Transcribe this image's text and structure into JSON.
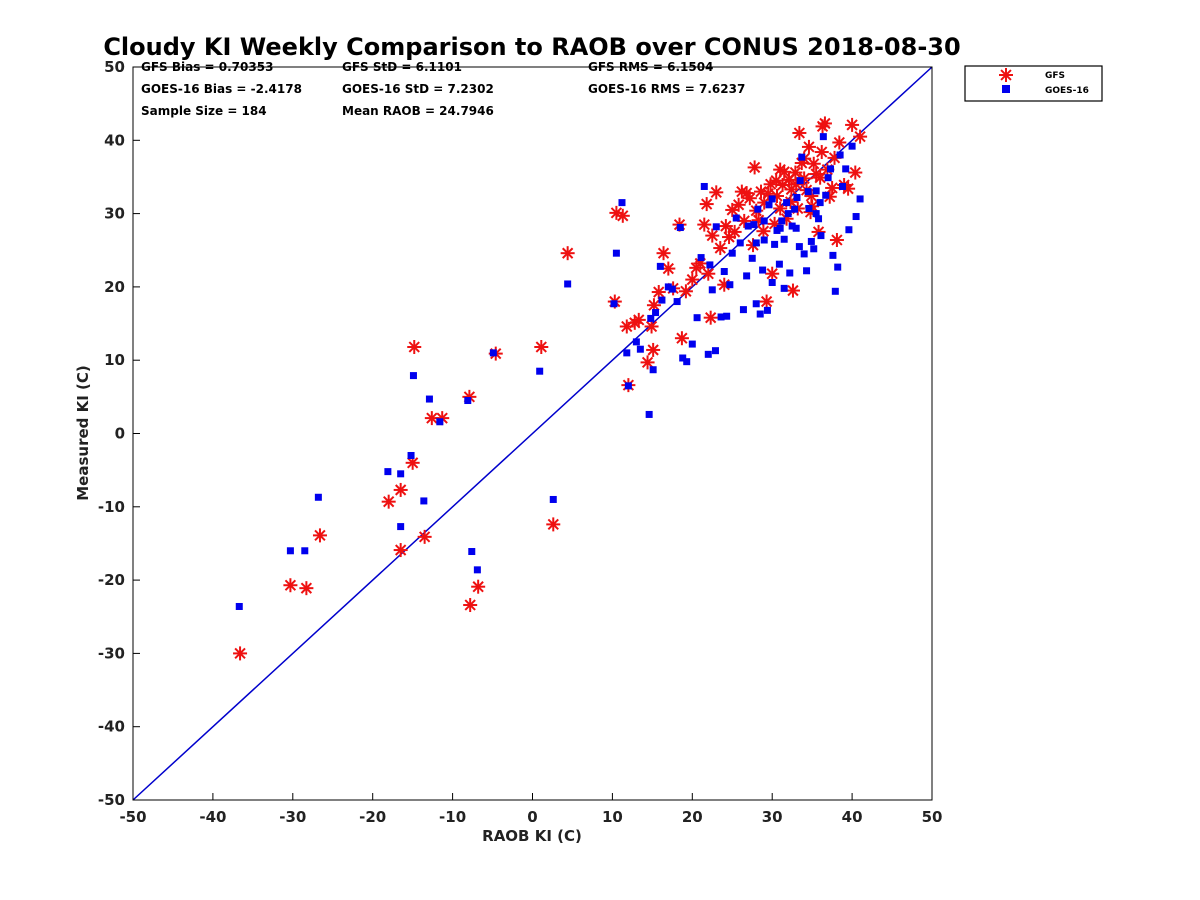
{
  "chart_data": {
    "type": "scatter",
    "title": "Cloudy KI Weekly Comparison to RAOB over CONUS 2018-08-30",
    "xlabel": "RAOB KI (C)",
    "ylabel": "Measured KI (C)",
    "xlim": [
      -50,
      50
    ],
    "ylim": [
      -50,
      50
    ],
    "xticks": [
      "-50",
      "-40",
      "-30",
      "-20",
      "-10",
      "0",
      "10",
      "20",
      "30",
      "40",
      "50"
    ],
    "yticks": [
      "50",
      "40",
      "30",
      "20",
      "10",
      "0",
      "-10",
      "-20",
      "-30",
      "-40",
      "-50"
    ],
    "grid": false,
    "legend_position": "top-right",
    "reference_line": {
      "from": [
        -50,
        -50
      ],
      "to": [
        50,
        50
      ],
      "color": "#0000cc"
    },
    "stats": [
      "GFS Bias = 0.70353",
      "GFS StD = 6.1101",
      "GFS RMS = 6.1504",
      "GOES-16 Bias = -2.4178",
      "GOES-16 StD = 7.2302",
      "GOES-16 RMS = 7.6237",
      "Sample Size = 184",
      "Mean RAOB = 24.7946"
    ],
    "series": [
      {
        "name": "GFS",
        "marker": "asterisk",
        "color": "#ee1111",
        "points": [
          [
            -36.6,
            -30
          ],
          [
            -30.3,
            -20.7
          ],
          [
            -28.3,
            -21.1
          ],
          [
            -26.6,
            -13.9
          ],
          [
            -18,
            -9.3
          ],
          [
            -16.5,
            -7.7
          ],
          [
            -16.5,
            -15.9
          ],
          [
            -15,
            -4
          ],
          [
            -14.8,
            11.8
          ],
          [
            -13.5,
            -14.1
          ],
          [
            -12.6,
            2.1
          ],
          [
            -11.3,
            2.1
          ],
          [
            -7.9,
            5
          ],
          [
            -7.8,
            -23.4
          ],
          [
            -6.8,
            -20.9
          ],
          [
            -4.6,
            10.9
          ],
          [
            1.1,
            11.8
          ],
          [
            2.6,
            -12.4
          ],
          [
            4.4,
            24.6
          ],
          [
            10.3,
            18
          ],
          [
            10.5,
            30.1
          ],
          [
            11.3,
            29.7
          ],
          [
            11.8,
            14.6
          ],
          [
            12,
            6.6
          ],
          [
            12.8,
            15.1
          ],
          [
            13.3,
            15.5
          ],
          [
            14.4,
            9.7
          ],
          [
            14.9,
            14.6
          ],
          [
            15.1,
            11.4
          ],
          [
            15.2,
            17.5
          ],
          [
            15.8,
            19.3
          ],
          [
            16.4,
            24.6
          ],
          [
            17,
            22.5
          ],
          [
            17.6,
            19.8
          ],
          [
            18.4,
            28.5
          ],
          [
            18.7,
            13
          ],
          [
            19.2,
            19.4
          ],
          [
            20,
            21
          ],
          [
            20.5,
            22.6
          ],
          [
            21,
            23.2
          ],
          [
            21.5,
            28.5
          ],
          [
            21.8,
            31.3
          ],
          [
            22,
            21.8
          ],
          [
            22.3,
            15.8
          ],
          [
            22.5,
            27
          ],
          [
            23,
            32.9
          ],
          [
            23.5,
            25.3
          ],
          [
            24,
            20.3
          ],
          [
            24.2,
            28.3
          ],
          [
            24.6,
            26.8
          ],
          [
            25,
            30.5
          ],
          [
            25.3,
            27.5
          ],
          [
            25.8,
            31.2
          ],
          [
            26.2,
            33
          ],
          [
            26.5,
            29
          ],
          [
            26.8,
            32.8
          ],
          [
            27.2,
            32.1
          ],
          [
            27.6,
            25.7
          ],
          [
            27.8,
            36.3
          ],
          [
            28,
            30.4
          ],
          [
            28.3,
            29.1
          ],
          [
            28.6,
            33
          ],
          [
            29,
            31.5
          ],
          [
            29.3,
            18
          ],
          [
            29.5,
            32.7
          ],
          [
            29.8,
            34
          ],
          [
            30,
            21.8
          ],
          [
            30.3,
            28.6
          ],
          [
            30.6,
            32.4
          ],
          [
            31,
            30.7
          ],
          [
            31.3,
            33.9
          ],
          [
            31.5,
            35.7
          ],
          [
            31.8,
            29.3
          ],
          [
            32.1,
            34.6
          ],
          [
            32.4,
            33.3
          ],
          [
            32.6,
            19.5
          ],
          [
            32.9,
            35.6
          ],
          [
            33.2,
            30.7
          ],
          [
            33.4,
            41
          ],
          [
            33.7,
            36.9
          ],
          [
            34,
            34.8
          ],
          [
            34.3,
            33.2
          ],
          [
            34.6,
            39.1
          ],
          [
            34.9,
            32.4
          ],
          [
            35.2,
            36.8
          ],
          [
            35.5,
            35.4
          ],
          [
            35.8,
            27.5
          ],
          [
            36,
            34.9
          ],
          [
            36.3,
            41.9
          ],
          [
            36.6,
            42.3
          ],
          [
            36.9,
            36
          ],
          [
            37.2,
            32.3
          ],
          [
            37.5,
            33.5
          ],
          [
            37.8,
            37.6
          ],
          [
            38.1,
            26.4
          ],
          [
            38.4,
            39.7
          ],
          [
            39,
            33.9
          ],
          [
            39.5,
            33.4
          ],
          [
            40,
            42.1
          ],
          [
            40.4,
            35.6
          ],
          [
            41,
            40.5
          ],
          [
            34,
            37.5
          ],
          [
            35,
            31
          ],
          [
            33,
            34
          ],
          [
            31,
            36
          ],
          [
            30.5,
            34.5
          ],
          [
            32.3,
            31.6
          ],
          [
            34.8,
            30.2
          ],
          [
            36.2,
            38.4
          ],
          [
            28.9,
            27.6
          ]
        ]
      },
      {
        "name": "GOES-16",
        "marker": "square",
        "color": "#0000ee",
        "points": [
          [
            -36.7,
            -23.6
          ],
          [
            -30.3,
            -16
          ],
          [
            -28.5,
            -16
          ],
          [
            -26.8,
            -8.7
          ],
          [
            -18.1,
            -5.2
          ],
          [
            -16.5,
            -5.5
          ],
          [
            -16.5,
            -12.7
          ],
          [
            -15.2,
            -3
          ],
          [
            -14.9,
            7.9
          ],
          [
            -13.6,
            -9.2
          ],
          [
            -12.9,
            4.7
          ],
          [
            -11.6,
            1.6
          ],
          [
            -8.1,
            4.5
          ],
          [
            -7.6,
            -16.1
          ],
          [
            -6.9,
            -18.6
          ],
          [
            -4.9,
            11
          ],
          [
            0.9,
            8.5
          ],
          [
            2.6,
            -9
          ],
          [
            4.4,
            20.4
          ],
          [
            10.2,
            17.7
          ],
          [
            10.5,
            24.6
          ],
          [
            11.2,
            31.5
          ],
          [
            11.8,
            11
          ],
          [
            12,
            6.5
          ],
          [
            13,
            12.5
          ],
          [
            13.5,
            11.5
          ],
          [
            14.6,
            2.6
          ],
          [
            14.8,
            15.7
          ],
          [
            15.1,
            8.7
          ],
          [
            15.4,
            16.5
          ],
          [
            16,
            22.8
          ],
          [
            16.2,
            18.2
          ],
          [
            17,
            20
          ],
          [
            17.5,
            19.7
          ],
          [
            18.1,
            18
          ],
          [
            18.5,
            28.1
          ],
          [
            18.8,
            10.3
          ],
          [
            19.3,
            9.8
          ],
          [
            20,
            12.2
          ],
          [
            20.6,
            15.8
          ],
          [
            21.1,
            24
          ],
          [
            21.5,
            33.7
          ],
          [
            22,
            10.8
          ],
          [
            22.2,
            23
          ],
          [
            22.5,
            19.6
          ],
          [
            22.9,
            11.3
          ],
          [
            23,
            28.2
          ],
          [
            23.6,
            15.9
          ],
          [
            24,
            22.1
          ],
          [
            24.3,
            16
          ],
          [
            24.7,
            20.3
          ],
          [
            25,
            24.6
          ],
          [
            25.5,
            29.4
          ],
          [
            26,
            26
          ],
          [
            26.4,
            16.9
          ],
          [
            26.8,
            21.5
          ],
          [
            27,
            28.3
          ],
          [
            27.5,
            23.9
          ],
          [
            27.7,
            28.5
          ],
          [
            28,
            17.7
          ],
          [
            28.2,
            30.6
          ],
          [
            28.5,
            16.3
          ],
          [
            28.8,
            22.3
          ],
          [
            29,
            26.4
          ],
          [
            29.4,
            16.8
          ],
          [
            29.6,
            31.2
          ],
          [
            30,
            20.6
          ],
          [
            30.3,
            25.8
          ],
          [
            30.6,
            27.7
          ],
          [
            30.9,
            23.1
          ],
          [
            31.2,
            29
          ],
          [
            31.5,
            19.8
          ],
          [
            31.8,
            31.5
          ],
          [
            32.2,
            21.9
          ],
          [
            32.5,
            28.3
          ],
          [
            32.8,
            30.6
          ],
          [
            33.1,
            32.2
          ],
          [
            33.4,
            25.5
          ],
          [
            33.7,
            37.7
          ],
          [
            34,
            24.5
          ],
          [
            34.3,
            22.2
          ],
          [
            34.6,
            30.7
          ],
          [
            34.9,
            26.2
          ],
          [
            35.2,
            25.2
          ],
          [
            35.5,
            33.1
          ],
          [
            35.8,
            29.3
          ],
          [
            36.1,
            27
          ],
          [
            36.4,
            40.5
          ],
          [
            36.7,
            32.5
          ],
          [
            37,
            34.9
          ],
          [
            37.3,
            36.1
          ],
          [
            37.6,
            24.3
          ],
          [
            37.9,
            19.4
          ],
          [
            38.2,
            22.7
          ],
          [
            38.5,
            38
          ],
          [
            38.8,
            33.7
          ],
          [
            39.2,
            36.1
          ],
          [
            39.6,
            27.8
          ],
          [
            40,
            39.2
          ],
          [
            40.5,
            29.6
          ],
          [
            41,
            32
          ],
          [
            33,
            28
          ],
          [
            32,
            30
          ],
          [
            31,
            28
          ],
          [
            34.5,
            33
          ],
          [
            35.5,
            30
          ],
          [
            30,
            32
          ],
          [
            29,
            29
          ],
          [
            28,
            26
          ],
          [
            33.5,
            34.5
          ],
          [
            31.5,
            26.5
          ],
          [
            36,
            31.5
          ]
        ]
      }
    ]
  }
}
